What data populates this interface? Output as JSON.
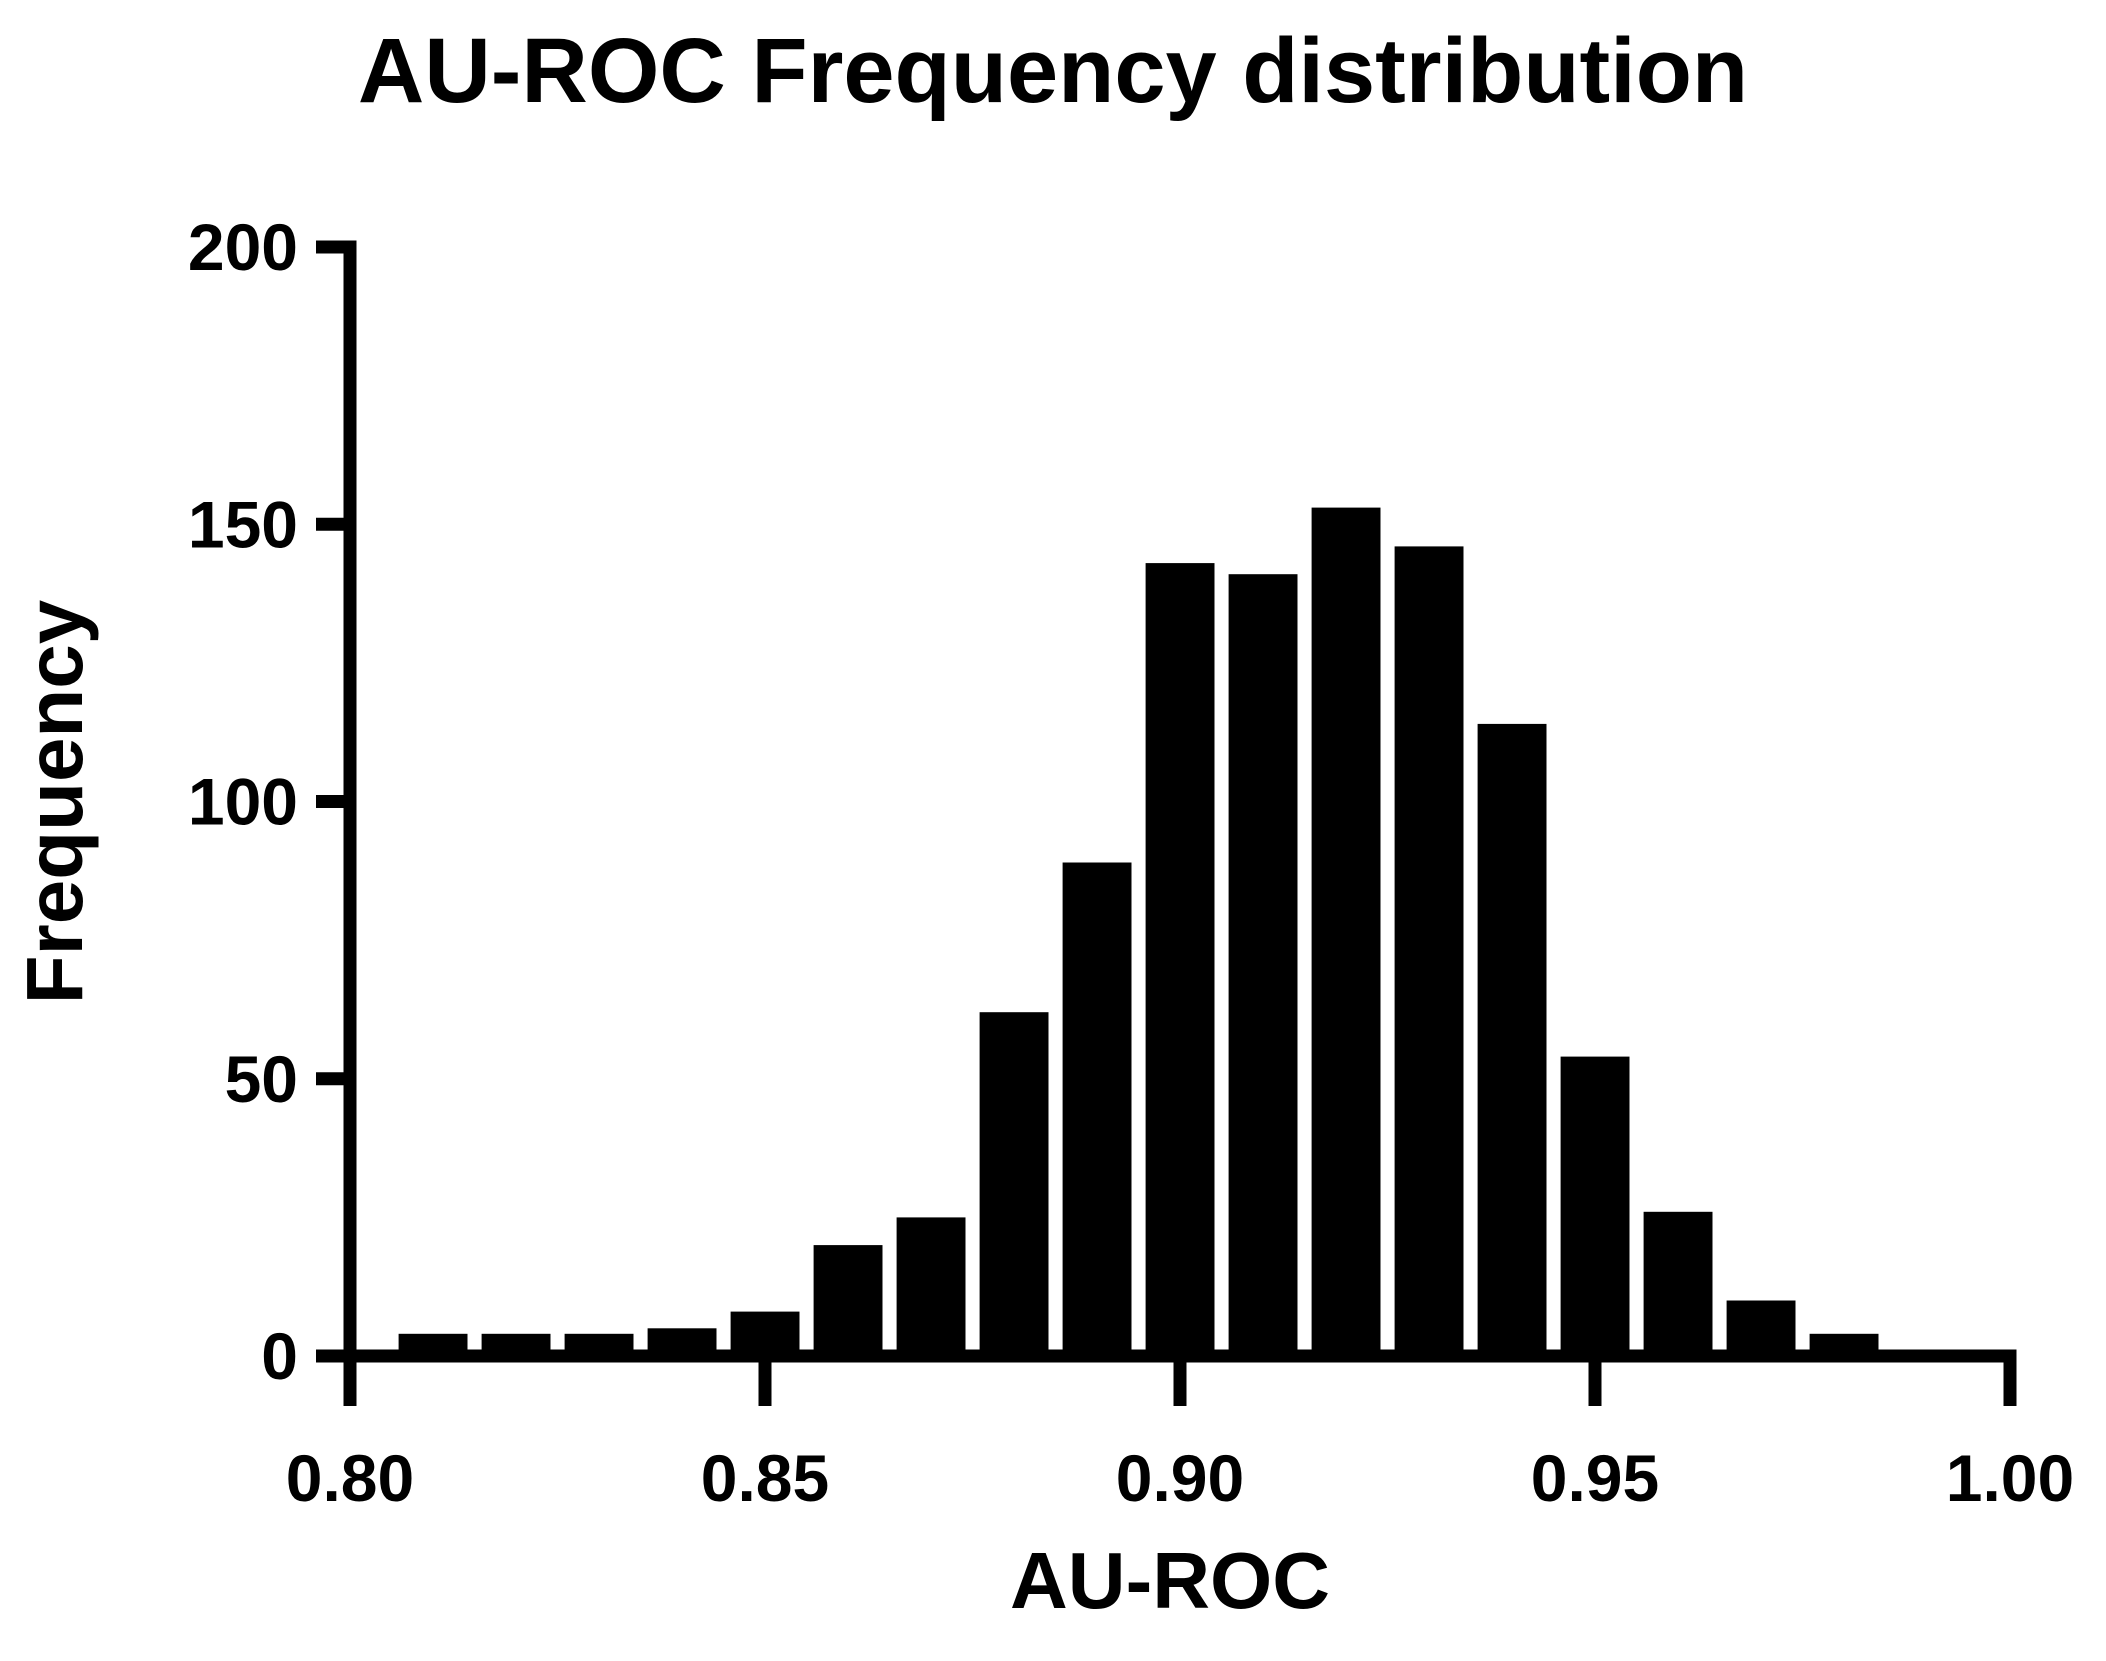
{
  "chart_data": {
    "type": "bar",
    "title": "AU-ROC Frequency distribution",
    "xlabel": "AU-ROC",
    "ylabel": "Frequency",
    "xlim": [
      0.8,
      1.0
    ],
    "ylim": [
      0,
      200
    ],
    "x_ticks": [
      "0.80",
      "0.85",
      "0.90",
      "0.95",
      "1.00"
    ],
    "y_ticks": [
      "0",
      "50",
      "100",
      "150",
      "200"
    ],
    "bin_width": 0.01,
    "bins": [
      0.81,
      0.82,
      0.83,
      0.84,
      0.85,
      0.86,
      0.87,
      0.88,
      0.89,
      0.9,
      0.91,
      0.92,
      0.93,
      0.94,
      0.95,
      0.96,
      0.97,
      0.98
    ],
    "values": [
      4,
      4,
      4,
      5,
      8,
      20,
      25,
      62,
      89,
      143,
      141,
      153,
      146,
      114,
      54,
      26,
      10,
      4
    ],
    "grid": false,
    "legend": "none",
    "bar_color": "#000000",
    "axis_color": "#000000"
  }
}
